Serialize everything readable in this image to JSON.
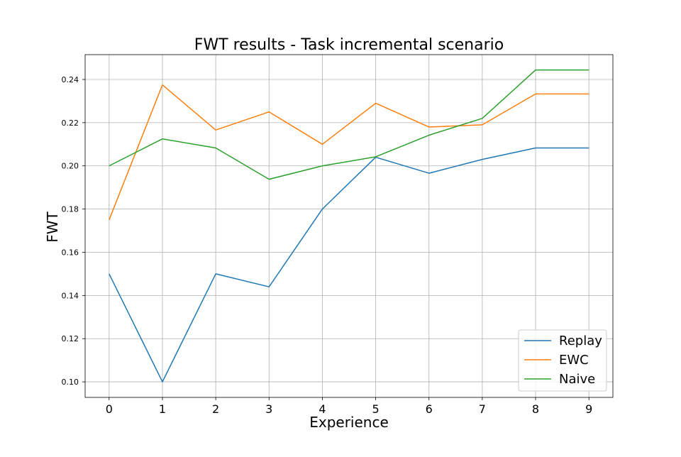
{
  "chart_data": {
    "type": "line",
    "title": "FWT results - Task incremental scenario",
    "xlabel": "Experience",
    "ylabel": "FWT",
    "x": [
      0,
      1,
      2,
      3,
      4,
      5,
      6,
      7,
      8,
      9
    ],
    "xlim": [
      -0.45,
      9.45
    ],
    "ylim": [
      0.0928,
      0.2515
    ],
    "xticks": [
      0,
      1,
      2,
      3,
      4,
      5,
      6,
      7,
      8,
      9
    ],
    "yticks": [
      0.1,
      0.12,
      0.14,
      0.16,
      0.18,
      0.2,
      0.22,
      0.24
    ],
    "ytick_labels": [
      "0.10",
      "0.12",
      "0.14",
      "0.16",
      "0.18",
      "0.20",
      "0.22",
      "0.24"
    ],
    "grid": true,
    "legend_position": "lower-right",
    "series": [
      {
        "name": "Replay",
        "color": "#1f77b4",
        "values": [
          0.15,
          0.1,
          0.15,
          0.144,
          0.18,
          0.204,
          0.1966,
          0.203,
          0.2083,
          0.2083
        ]
      },
      {
        "name": "EWC",
        "color": "#ff7f0e",
        "values": [
          0.175,
          0.2375,
          0.2166,
          0.225,
          0.21,
          0.229,
          0.218,
          0.219,
          0.2333,
          0.2333
        ]
      },
      {
        "name": "Naive",
        "color": "#2ca02c",
        "values": [
          0.2,
          0.2125,
          0.2083,
          0.1938,
          0.2,
          0.2042,
          0.2142,
          0.222,
          0.2444,
          0.2444
        ]
      }
    ]
  }
}
